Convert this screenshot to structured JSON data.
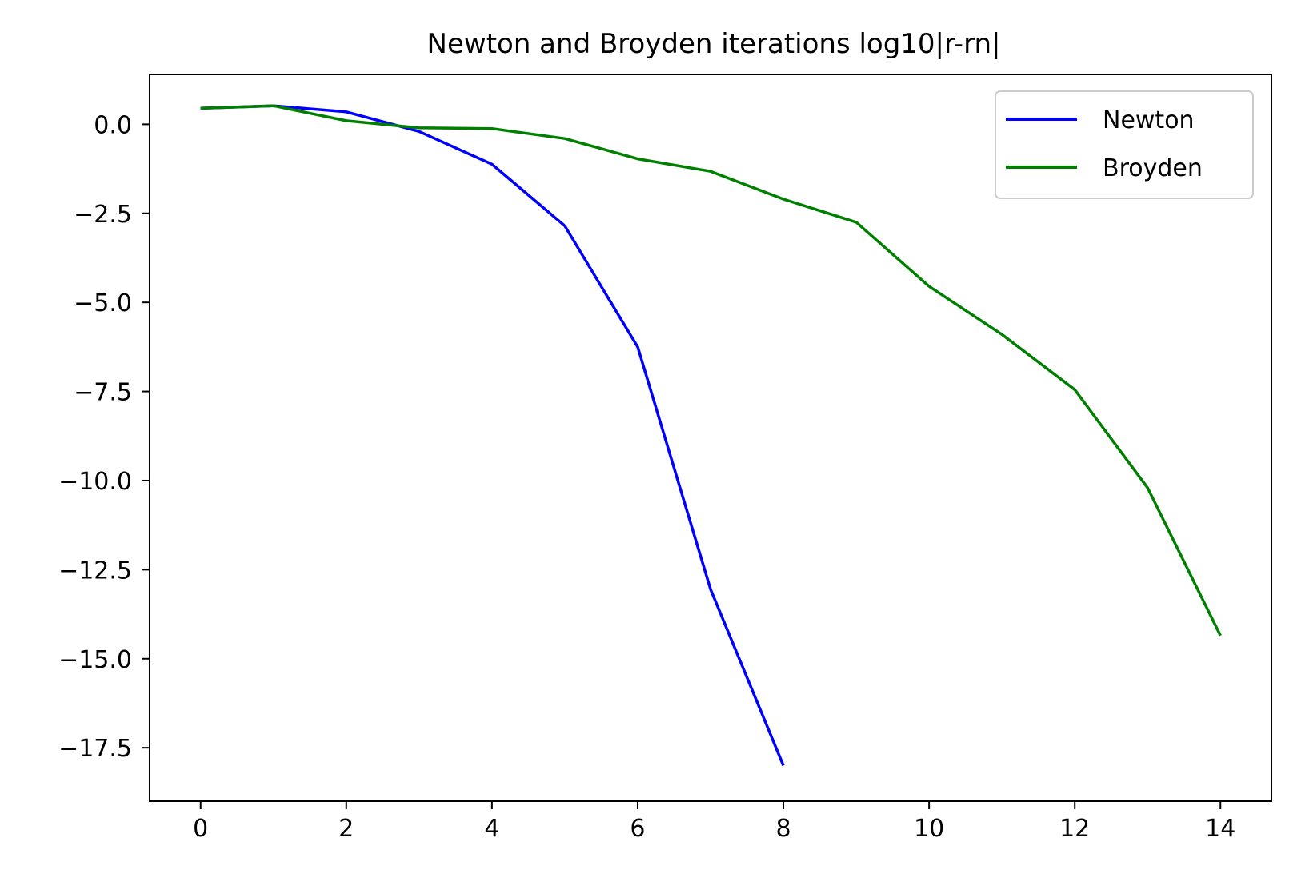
{
  "chart_data": {
    "type": "line",
    "title": "Newton and Broyden iterations log10|r-rn|",
    "xlabel": "",
    "ylabel": "",
    "xlim": [
      -0.7,
      14.7
    ],
    "ylim": [
      -19.0,
      1.4
    ],
    "x_ticks": [
      0,
      2,
      4,
      6,
      8,
      10,
      12,
      14
    ],
    "x_tick_labels": [
      "0",
      "2",
      "4",
      "6",
      "8",
      "10",
      "12",
      "14"
    ],
    "y_ticks": [
      0.0,
      -2.5,
      -5.0,
      -7.5,
      -10.0,
      -12.5,
      -15.0,
      -17.5
    ],
    "y_tick_labels": [
      "0.0",
      "−2.5",
      "−5.0",
      "−7.5",
      "−10.0",
      "−12.5",
      "−15.0",
      "−17.5"
    ],
    "grid": false,
    "legend_position": "top-right",
    "series": [
      {
        "name": "Newton",
        "color": "#0000ff",
        "x": [
          0,
          1,
          2,
          3,
          4,
          5,
          6,
          7,
          8
        ],
        "y": [
          0.45,
          0.52,
          0.35,
          -0.2,
          -1.12,
          -2.85,
          -6.25,
          -13.05,
          -18.0
        ]
      },
      {
        "name": "Broyden",
        "color": "#008000",
        "x": [
          0,
          1,
          2,
          3,
          4,
          5,
          6,
          7,
          8,
          9,
          10,
          11,
          12,
          13,
          14
        ],
        "y": [
          0.45,
          0.52,
          0.1,
          -0.1,
          -0.12,
          -0.4,
          -0.97,
          -1.32,
          -2.1,
          -2.75,
          -4.55,
          -5.9,
          -7.45,
          -10.2,
          -14.35
        ]
      }
    ]
  }
}
